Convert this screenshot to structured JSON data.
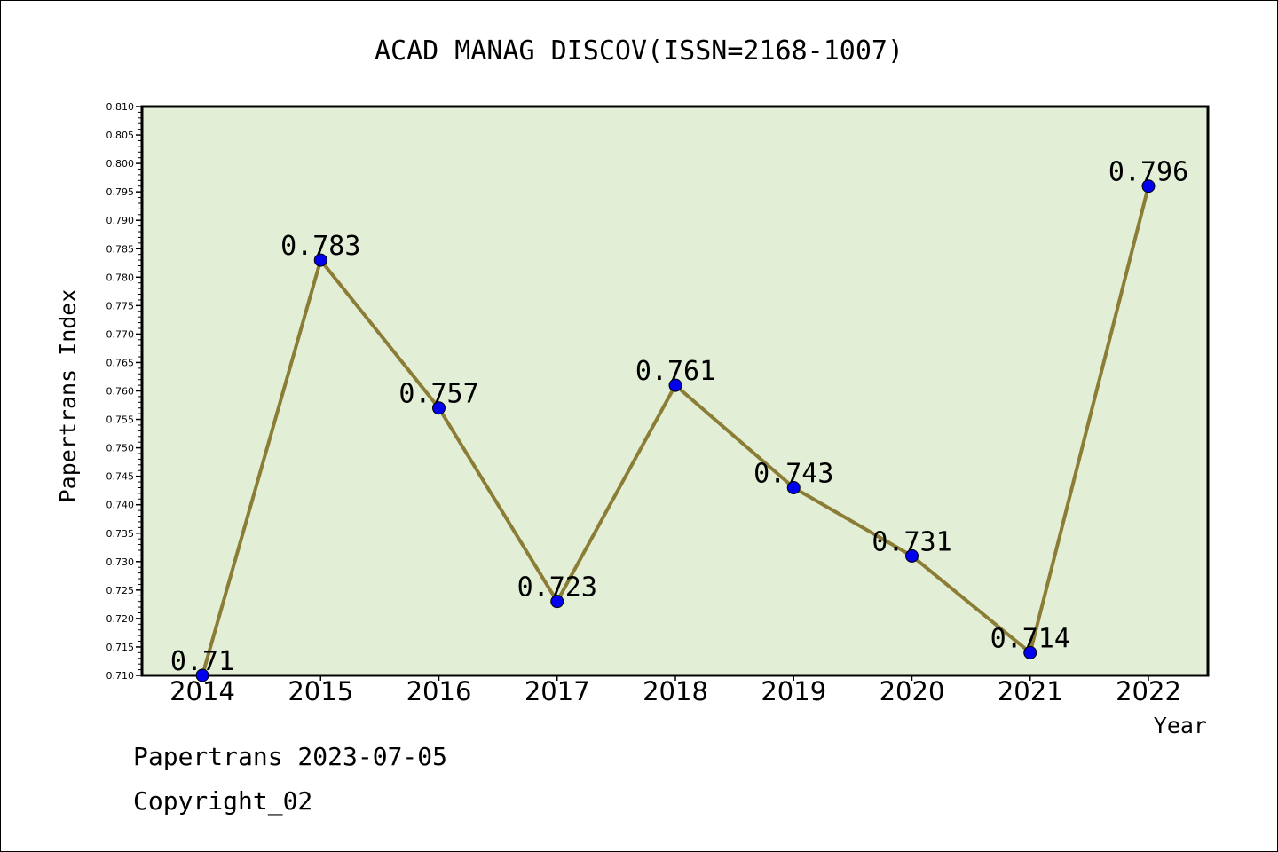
{
  "chart_data": {
    "type": "line",
    "title": "ACAD MANAG DISCOV(ISSN=2168-1007)",
    "xlabel": "Year",
    "ylabel": "Papertrans Index",
    "categories": [
      "2014",
      "2015",
      "2016",
      "2017",
      "2018",
      "2019",
      "2020",
      "2021",
      "2022"
    ],
    "series": [
      {
        "values": [
          0.71,
          0.783,
          0.757,
          0.723,
          0.761,
          0.743,
          0.731,
          0.714,
          0.796
        ],
        "labels": [
          "0.71",
          "0.783",
          "0.757",
          "0.723",
          "0.761",
          "0.743",
          "0.731",
          "0.714",
          "0.796"
        ]
      }
    ],
    "ylim": [
      0.71,
      0.81
    ],
    "yticks": [
      "0.710",
      "0.715",
      "0.720",
      "0.725",
      "0.730",
      "0.735",
      "0.740",
      "0.745",
      "0.750",
      "0.755",
      "0.760",
      "0.765",
      "0.770",
      "0.775",
      "0.780",
      "0.785",
      "0.790",
      "0.795",
      "0.800",
      "0.805",
      "0.810"
    ],
    "grid": false,
    "colors": {
      "plot_background": "#e2efd6",
      "line": "#8b7d35",
      "marker": "#0000ee"
    }
  },
  "footer": {
    "source": "Papertrans 2023-07-05",
    "copyright": "Copyright_02"
  }
}
